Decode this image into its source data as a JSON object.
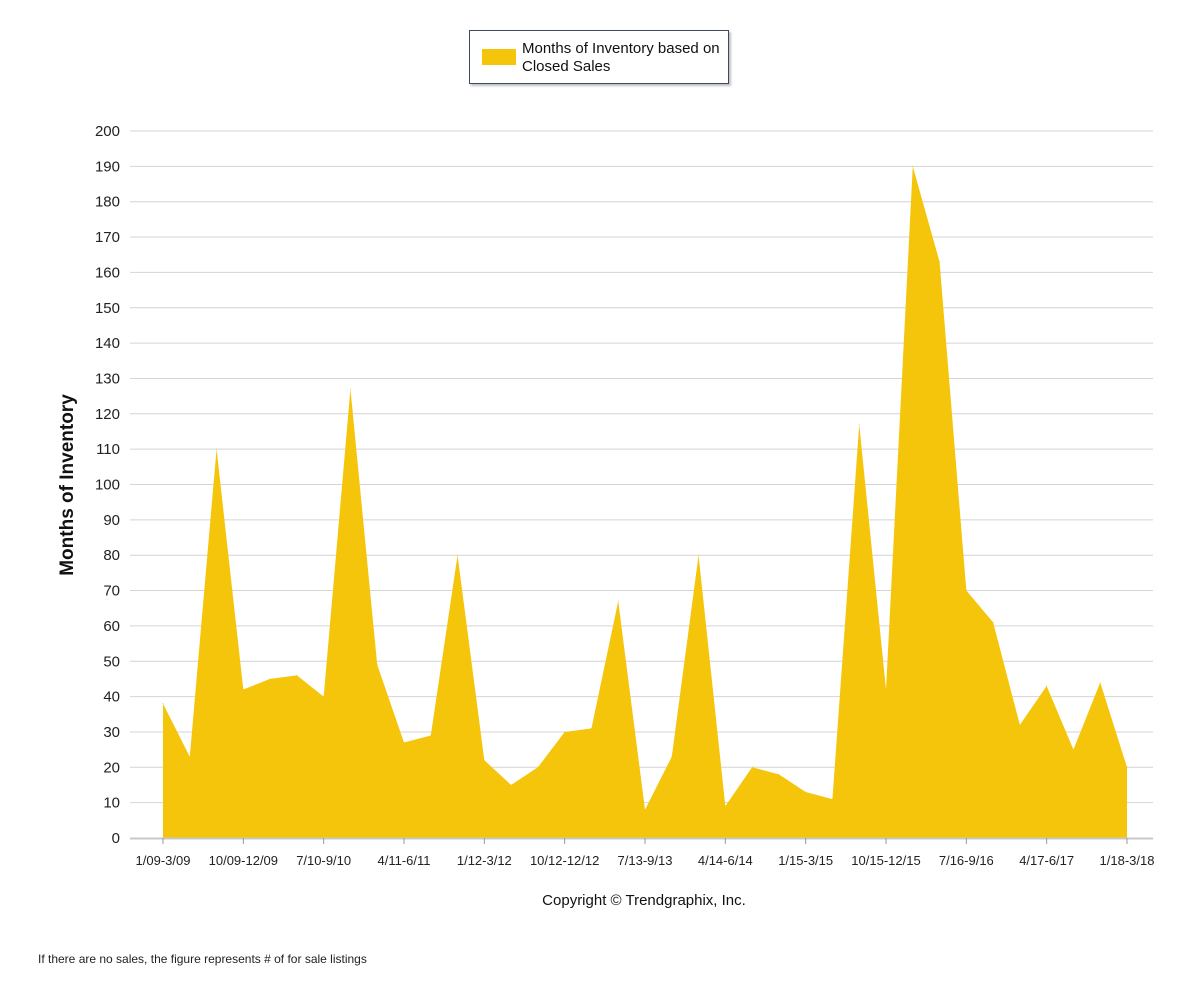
{
  "chart_data": {
    "type": "area",
    "ylabel": "Months of Inventory",
    "ylim": [
      0,
      200
    ],
    "y_ticks": [
      0,
      10,
      20,
      30,
      40,
      50,
      60,
      70,
      80,
      90,
      100,
      110,
      120,
      130,
      140,
      150,
      160,
      170,
      180,
      190,
      200
    ],
    "x_tick_labels": [
      "1/09-3/09",
      "10/09-12/09",
      "7/10-9/10",
      "4/11-6/11",
      "1/12-3/12",
      "10/12-12/12",
      "7/13-9/13",
      "4/14-6/14",
      "1/15-3/15",
      "10/15-12/15",
      "7/16-9/16",
      "4/17-6/17",
      "1/18-3/18"
    ],
    "grid": true,
    "legend_position": "top-center",
    "series": [
      {
        "name": "Months of Inventory based on Closed Sales",
        "color": "#f5c50c",
        "values": [
          38,
          23,
          110,
          42,
          45,
          46,
          40,
          127,
          49,
          27,
          29,
          80,
          22,
          15,
          20,
          30,
          31,
          67,
          8,
          23,
          80,
          9,
          20,
          18,
          13,
          11,
          117,
          42,
          190,
          163,
          70,
          61,
          32,
          43,
          25,
          44,
          20
        ]
      }
    ]
  },
  "copyright": "Copyright © Trendgraphix, Inc.",
  "footnote": "If there are no sales, the figure represents # of for sale listings"
}
